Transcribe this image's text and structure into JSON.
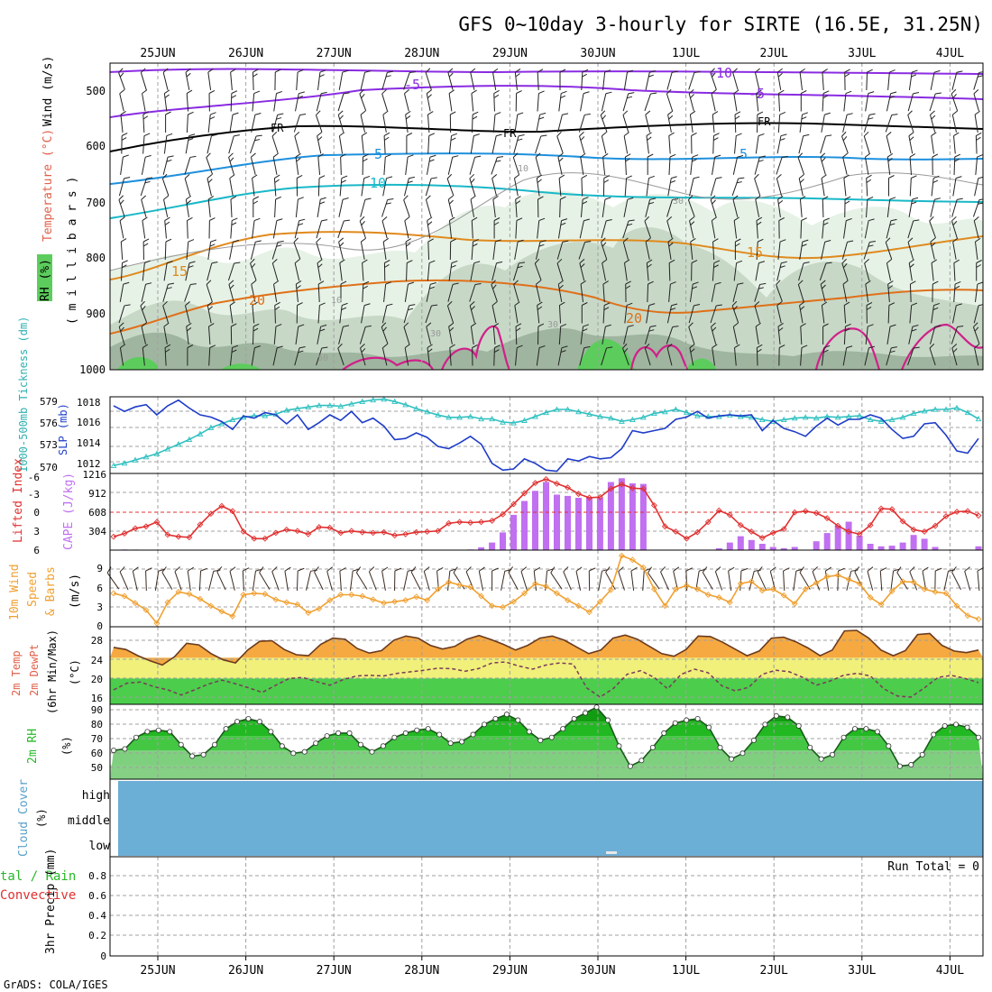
{
  "title": "GFS 0~10day 3-hourly for SIRTE (16.5E, 31.25N)",
  "footer": "GrADS: COLA/IGES",
  "date_labels": [
    "25JUN",
    "26JUN",
    "27JUN",
    "28JUN",
    "29JUN",
    "30JUN",
    "1JUL",
    "2JUL",
    "3JUL",
    "4JUL"
  ],
  "colors": {
    "frame": "#000000",
    "grid": "#a0a0a0",
    "temp_contour_purple": "#8a2be2",
    "temp_contour_blue": "#1e90dd",
    "temp_contour_cyan": "#19b8c8",
    "temp_contour_orange": "#e08a1e",
    "rh_light": "#e6f2e6",
    "rh_mid": "#c7d8c7",
    "rh_dark": "#9fb59f",
    "rh_green": "#5ccd5c",
    "magenta": "#d0208a",
    "slp": "#1e3cc8",
    "thickness": "#30c0c0",
    "lifted_index": "#e03030",
    "cape": "#c070f0",
    "wind_speed": "#f0a030",
    "temp_fill": "#f5a940",
    "temp_band_yellow": "#f0f07a",
    "temp_band_green": "#4ccd4c",
    "rh_fill": "#28b828",
    "cloud": "#6baed6"
  },
  "panels": {
    "upper_air": {
      "ylabel_wind": "Wind (m/s)",
      "ylabel_temp": "Temperature (°C)",
      "ylabel_rh": "RH (%)",
      "ylabel_units": "( m i l l i b a r s )",
      "yticks": [
        "500",
        "600",
        "700",
        "800",
        "900",
        "1000"
      ],
      "contour_labels": [
        "-10",
        "-5",
        "-5",
        "FR",
        "FR",
        "FR",
        "5",
        "5",
        "10",
        "15",
        "15",
        "20",
        "20",
        "10",
        "30",
        "30",
        "50",
        "10",
        "30"
      ]
    },
    "slp": {
      "ylabel_left": "1000-500mb Tickness (dm)",
      "ylabel_right": "SLP (mb)",
      "thickness_ticks": [
        "579",
        "576",
        "573",
        "570"
      ],
      "slp_ticks": [
        "1018",
        "1016",
        "1014",
        "1012"
      ]
    },
    "cape": {
      "ylabel_left": "Lifted Index",
      "ylabel_right": "CAPE (J/kg)",
      "li_ticks": [
        "-6",
        "-3",
        "0",
        "3",
        "6"
      ],
      "cape_ticks": [
        "1216",
        "912",
        "608",
        "304"
      ]
    },
    "wind10m": {
      "ylabel": "10m Wind Speed & Barbs",
      "ylabel_line1": "10m Wind",
      "ylabel_line2": "Speed",
      "ylabel_line3": "& Barbs",
      "units": "(m/s)",
      "yticks": [
        "9",
        "6",
        "3",
        "0"
      ]
    },
    "temp2m": {
      "ylabel_line1": "2m Temp",
      "ylabel_line2": "2m DewPt",
      "ylabel_line3": "(6hr Min/Max)",
      "units": "(°C)",
      "yticks": [
        "28",
        "24",
        "20",
        "16"
      ]
    },
    "rh2m": {
      "ylabel": "2m RH",
      "units": "(%)",
      "yticks": [
        "90",
        "80",
        "70",
        "60",
        "50"
      ]
    },
    "cloud": {
      "ylabel": "Cloud Cover",
      "units": "(%)",
      "levels": [
        "high",
        "middle",
        "low"
      ]
    },
    "precip": {
      "ylabel_left_1": "tal / Rain",
      "ylabel_left_2": "Convective",
      "ylabel": "3hr Precip (mm)",
      "run_total": "Run Total = 0",
      "yticks": [
        "0.8",
        "0.6",
        "0.4",
        "0.2",
        "0"
      ]
    }
  },
  "chart_data": [
    {
      "type": "line",
      "name": "SLP",
      "units": "mb",
      "ylim": [
        1011.5,
        1018.3
      ],
      "x_hours": [
        0,
        3,
        6,
        9,
        12,
        15,
        18,
        21,
        24,
        27,
        30,
        33,
        36,
        39,
        42,
        45,
        48,
        51,
        54,
        57,
        60,
        63,
        66,
        69,
        72,
        75,
        78,
        81,
        84,
        87,
        90,
        93,
        96,
        99,
        102,
        105,
        108,
        111,
        114,
        117,
        120,
        123,
        126,
        129,
        132,
        135,
        138,
        141,
        144,
        147,
        150,
        153,
        156,
        159,
        162,
        165,
        168,
        171,
        174,
        177,
        180,
        183,
        186,
        189,
        192,
        195,
        198,
        201,
        204,
        207,
        210,
        213,
        216,
        219,
        222,
        225,
        228,
        231,
        234,
        237,
        240
      ],
      "values": [
        1017.5,
        1017.0,
        1017.4,
        1017.6,
        1016.7,
        1017.5,
        1018.0,
        1017.3,
        1016.7,
        1016.5,
        1016.1,
        1015.4,
        1016.6,
        1016.4,
        1016.9,
        1016.7,
        1015.9,
        1016.7,
        1015.4,
        1016.0,
        1016.7,
        1016.2,
        1017.0,
        1016.0,
        1016.4,
        1015.7,
        1014.5,
        1014.6,
        1015.1,
        1014.7,
        1013.9,
        1013.7,
        1014.2,
        1014.8,
        1014.1,
        1012.4,
        1011.8,
        1011.9,
        1012.8,
        1012.4,
        1011.8,
        1011.7,
        1012.8,
        1012.6,
        1013.0,
        1012.8,
        1012.9,
        1013.7,
        1015.3,
        1015.1,
        1015.3,
        1015.5,
        1016.3,
        1016.5,
        1017.0,
        1016.4,
        1016.6,
        1016.7,
        1016.6,
        1016.7,
        1015.3,
        1016.2,
        1015.5,
        1015.2,
        1014.8,
        1015.7,
        1016.4,
        1015.8,
        1016.3,
        1016.3,
        1016.7,
        1016.4,
        1015.4,
        1014.6,
        1014.8,
        1015.9,
        1016.0,
        1014.9,
        1013.5,
        1013.3,
        1014.6
      ]
    },
    {
      "type": "line",
      "name": "1000-500mb Thickness",
      "units": "dm",
      "ylim": [
        569.5,
        579.2
      ],
      "x_hours": [
        0,
        3,
        6,
        9,
        12,
        15,
        18,
        21,
        24,
        27,
        30,
        33,
        36,
        39,
        42,
        45,
        48,
        51,
        54,
        57,
        60,
        63,
        66,
        69,
        72,
        75,
        78,
        81,
        84,
        87,
        90,
        93,
        96,
        99,
        102,
        105,
        108,
        111,
        114,
        117,
        120,
        123,
        126,
        129,
        132,
        135,
        138,
        141,
        144,
        147,
        150,
        153,
        156,
        159,
        162,
        165,
        168,
        171,
        174,
        177,
        180,
        183,
        186,
        189,
        192,
        195,
        198,
        201,
        204,
        207,
        210,
        213,
        216,
        219,
        222,
        225,
        228,
        231,
        234,
        237,
        240
      ],
      "values": [
        570.5,
        570.8,
        571.2,
        571.6,
        572.0,
        572.6,
        573.2,
        573.8,
        574.5,
        575.3,
        575.8,
        576.3,
        576.6,
        576.8,
        576.8,
        577.0,
        577.5,
        577.7,
        577.9,
        578.1,
        578.1,
        578.0,
        578.3,
        578.6,
        578.8,
        578.9,
        578.6,
        578.2,
        577.7,
        577.3,
        576.9,
        576.6,
        576.6,
        576.7,
        576.4,
        576.4,
        576.0,
        575.9,
        576.2,
        576.7,
        577.2,
        577.6,
        577.6,
        577.3,
        577.0,
        576.7,
        576.5,
        576.1,
        576.3,
        576.6,
        577.1,
        577.3,
        577.6,
        577.2,
        576.8,
        576.7,
        576.7,
        576.9,
        576.7,
        576.6,
        576.3,
        576.1,
        576.3,
        576.5,
        576.6,
        576.5,
        576.7,
        576.6,
        576.7,
        576.8,
        576.3,
        576.1,
        576.3,
        576.6,
        577.1,
        577.4,
        577.6,
        577.6,
        577.8,
        577.2,
        576.4
      ]
    },
    {
      "type": "bar",
      "name": "CAPE",
      "units": "J/kg",
      "ylim": [
        0,
        1216
      ],
      "x_hours": [
        0,
        3,
        6,
        9,
        12,
        15,
        18,
        21,
        24,
        27,
        30,
        33,
        36,
        39,
        42,
        45,
        48,
        51,
        54,
        57,
        60,
        63,
        66,
        69,
        72,
        75,
        78,
        81,
        84,
        87,
        90,
        93,
        96,
        99,
        102,
        105,
        108,
        111,
        114,
        117,
        120,
        123,
        126,
        129,
        132,
        135,
        138,
        141,
        144,
        147,
        150,
        153,
        156,
        159,
        162,
        165,
        168,
        171,
        174,
        177,
        180,
        183,
        186,
        189,
        192,
        195,
        198,
        201,
        204,
        207,
        210,
        213,
        216,
        219,
        222,
        225,
        228,
        231,
        234,
        237,
        240
      ],
      "values": [
        0,
        10,
        8,
        0,
        0,
        0,
        0,
        0,
        0,
        0,
        0,
        0,
        0,
        0,
        0,
        0,
        0,
        0,
        0,
        0,
        0,
        0,
        0,
        0,
        0,
        0,
        0,
        0,
        0,
        0,
        0,
        0,
        0,
        10,
        45,
        120,
        280,
        560,
        780,
        940,
        1080,
        880,
        860,
        830,
        830,
        830,
        1080,
        1140,
        1060,
        1050,
        0,
        0,
        0,
        0,
        0,
        0,
        30,
        120,
        220,
        160,
        100,
        50,
        30,
        50,
        0,
        140,
        270,
        390,
        450,
        230,
        100,
        60,
        70,
        120,
        240,
        180,
        50,
        0,
        0,
        0,
        60
      ]
    },
    {
      "type": "line",
      "name": "Lifted Index",
      "units": "",
      "ylim": [
        6,
        -6
      ],
      "values": [
        3.9,
        3.4,
        2.6,
        2.3,
        1.6,
        3.6,
        3.9,
        4.0,
        2.0,
        0.3,
        -0.9,
        -0.1,
        3.1,
        4.2,
        4.2,
        3.3,
        2.8,
        3.0,
        3.5,
        2.4,
        2.5,
        3.3,
        3.0,
        3.2,
        3.3,
        3.2,
        3.7,
        3.5,
        3.2,
        3.1,
        3.0,
        1.8,
        1.6,
        1.7,
        1.6,
        1.4,
        0.4,
        -1.2,
        -2.9,
        -4.5,
        -5.1,
        -4.4,
        -3.8,
        -2.8,
        -2.2,
        -2.3,
        -3.6,
        -4.3,
        -3.7,
        -3.6,
        -1.0,
        2.3,
        3.1,
        4.2,
        3.2,
        1.6,
        -0.2,
        0.5,
        2.1,
        3.1,
        4.1,
        3.3,
        2.7,
        0.1,
        -0.1,
        0.2,
        1.0,
        2.2,
        3.1,
        3.5,
        2.1,
        -0.5,
        -0.4,
        1.5,
        2.8,
        3.1,
        2.2,
        0.7,
        0.0,
        -0.1,
        0.6
      ]
    },
    {
      "type": "line",
      "name": "10m Wind Speed",
      "units": "m/s",
      "ylim": [
        0,
        11
      ],
      "values": [
        4.8,
        4.4,
        3.4,
        2.4,
        0.5,
        3.5,
        5.0,
        4.7,
        4.0,
        3.0,
        2.2,
        1.5,
        4.6,
        4.8,
        4.7,
        3.9,
        3.5,
        3.2,
        2.0,
        2.6,
        3.8,
        4.6,
        4.6,
        4.4,
        3.9,
        3.4,
        3.6,
        3.8,
        4.3,
        3.8,
        5.4,
        6.4,
        6.0,
        5.7,
        4.4,
        3.0,
        2.8,
        3.6,
        4.8,
        6.2,
        5.8,
        4.8,
        3.8,
        3.0,
        2.1,
        3.6,
        5.3,
        10.2,
        9.6,
        8.5,
        5.4,
        3.0,
        5.4,
        5.9,
        5.4,
        4.6,
        4.2,
        3.5,
        6.2,
        6.5,
        5.2,
        5.4,
        4.5,
        3.3,
        5.4,
        6.3,
        7.2,
        7.4,
        6.8,
        6.2,
        4.2,
        3.2,
        5.1,
        6.5,
        6.4,
        5.4,
        5.0,
        4.8,
        3.0,
        1.6,
        1.1
      ]
    },
    {
      "type": "area",
      "name": "2m Temp",
      "units": "°C",
      "ylim": [
        15,
        30
      ],
      "values": [
        26.0,
        25.6,
        24.4,
        23.4,
        22.6,
        24.2,
        26.8,
        26.5,
        24.8,
        23.6,
        23.0,
        25.5,
        27.2,
        27.3,
        25.6,
        24.6,
        24.4,
        26.6,
        27.8,
        27.6,
        25.8,
        24.9,
        25.4,
        27.4,
        28.2,
        27.8,
        26.4,
        25.7,
        26.2,
        27.6,
        28.3,
        27.5,
        26.6,
        25.5,
        26.4,
        27.8,
        28.2,
        27.4,
        26.1,
        24.8,
        25.5,
        27.8,
        28.4,
        27.6,
        26.2,
        24.8,
        24.3,
        25.6,
        28.2,
        28.1,
        27.0,
        25.7,
        24.4,
        25.3,
        27.8,
        28.0,
        27.1,
        25.9,
        24.4,
        25.5,
        29.2,
        29.3,
        27.8,
        25.5,
        24.4,
        25.4,
        28.5,
        28.7,
        26.4,
        25.3,
        25.0,
        25.5
      ]
    },
    {
      "type": "line",
      "name": "2m DewPt",
      "units": "°C",
      "ylim": [
        15,
        30
      ],
      "values": [
        17.8,
        19.1,
        19.3,
        18.4,
        17.8,
        16.8,
        17.8,
        18.9,
        19.7,
        19.0,
        18.2,
        17.3,
        18.7,
        20.0,
        20.2,
        19.4,
        18.7,
        19.8,
        20.5,
        20.6,
        20.5,
        21.0,
        21.3,
        21.6,
        22.0,
        21.9,
        21.4,
        21.9,
        23.0,
        23.2,
        22.4,
        21.8,
        22.6,
        23.0,
        22.8,
        18.2,
        16.4,
        18.1,
        20.8,
        21.5,
        20.2,
        18.0,
        20.8,
        21.8,
        21.1,
        18.6,
        17.6,
        18.3,
        20.8,
        21.6,
        21.3,
        20.2,
        18.7,
        19.5,
        20.6,
        21.0,
        20.5,
        18.0,
        16.6,
        16.4,
        18.2,
        20.2,
        20.6,
        20.0,
        19.2
      ]
    },
    {
      "type": "area",
      "name": "2m RH",
      "units": "%",
      "ylim": [
        40,
        92
      ],
      "values": [
        60,
        61,
        69,
        73,
        74,
        73,
        64,
        56,
        57,
        64,
        75,
        80,
        82,
        80,
        73,
        63,
        58,
        59,
        65,
        70,
        72,
        72,
        64,
        59,
        63,
        69,
        72,
        74,
        75,
        71,
        65,
        66,
        71,
        78,
        82,
        85,
        81,
        73,
        67,
        69,
        75,
        82,
        86,
        90,
        81,
        63,
        49,
        53,
        62,
        72,
        79,
        81,
        82,
        76,
        62,
        54,
        58,
        67,
        78,
        84,
        83,
        77,
        62,
        54,
        57,
        69,
        75,
        75,
        73,
        63,
        49,
        50,
        57,
        71,
        77,
        78,
        76,
        69
      ]
    },
    {
      "type": "bar",
      "name": "3hr Precip",
      "units": "mm",
      "ylim": [
        0,
        1.0
      ],
      "values": [
        0,
        0,
        0,
        0,
        0,
        0,
        0,
        0,
        0,
        0
      ]
    }
  ]
}
